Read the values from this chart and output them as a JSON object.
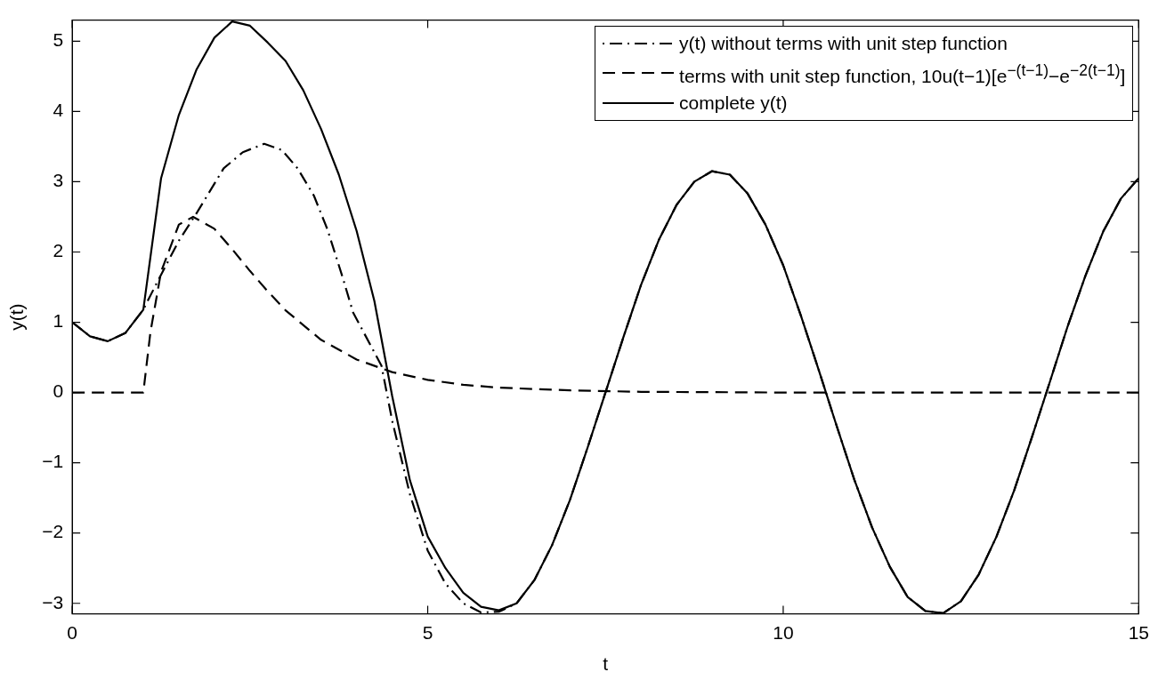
{
  "chart_data": {
    "type": "line",
    "xlabel": "t",
    "ylabel": "y(t)",
    "xlim": [
      0,
      15
    ],
    "xticks": [
      0,
      5,
      10,
      15
    ],
    "ylim": [
      -3.15,
      5.3
    ],
    "yticks": [
      -3,
      -2,
      -1,
      0,
      1,
      2,
      3,
      4,
      5
    ],
    "grid": false,
    "legend": "top right",
    "marker": "none",
    "series": [
      {
        "name": "y(t) without terms with unit step function",
        "color": "#000000",
        "line_style": "dashdot",
        "x": [
          0,
          0.25,
          0.5,
          0.75,
          1,
          1.06,
          1.21,
          1.5,
          1.76,
          2.13,
          2.4,
          2.7,
          2.95,
          3.17,
          3.4,
          3.59,
          3.8,
          3.95,
          4.35,
          4.5,
          4.75,
          5,
          5.25,
          5.5,
          5.75,
          6,
          6.25,
          6.5,
          6.75,
          7,
          7.25,
          7.5,
          7.75,
          8,
          8.25,
          8.5,
          8.75,
          9,
          9.25,
          9.5,
          9.75,
          10,
          10.25,
          10.5,
          10.75,
          11,
          11.25,
          11.5,
          11.75,
          12,
          12.25,
          12.5,
          12.75,
          13,
          13.25,
          13.5,
          13.75,
          14,
          14.25,
          14.5,
          14.75,
          15
        ],
        "values": [
          1,
          0.8,
          0.73,
          0.85,
          1.18,
          1.3,
          1.6,
          2.16,
          2.57,
          3.19,
          3.42,
          3.54,
          3.45,
          3.19,
          2.8,
          2.32,
          1.65,
          1.14,
          0.38,
          -0.4,
          -1.45,
          -2.25,
          -2.72,
          -3.0,
          -3.13,
          -3.12,
          -3.0,
          -2.67,
          -2.17,
          -1.53,
          -0.78,
          0,
          0.78,
          1.53,
          2.17,
          2.67,
          3.0,
          3.15,
          3.1,
          2.83,
          2.39,
          1.81,
          1.09,
          0.32,
          -0.47,
          -1.24,
          -1.92,
          -2.48,
          -2.91,
          -3.11,
          -3.14,
          -2.97,
          -2.59,
          -2.05,
          -1.39,
          -0.63,
          0.15,
          0.94,
          1.66,
          2.29,
          2.76,
          3.05
        ]
      },
      {
        "name": "terms with unit step function, 10u(t−1)[e$^{−(t−1)}$−e$^{−2(t−1)}$]",
        "color": "#000000",
        "line_style": "dashed",
        "x": [
          0,
          1,
          1.1,
          1.25,
          1.5,
          1.7,
          2,
          2.25,
          2.5,
          2.75,
          3,
          3.5,
          4,
          4.5,
          5,
          5.5,
          6,
          7,
          8,
          10,
          12,
          15
        ],
        "values": [
          0,
          0,
          0.86,
          1.72,
          2.39,
          2.5,
          2.33,
          2.04,
          1.73,
          1.44,
          1.17,
          0.75,
          0.47,
          0.29,
          0.18,
          0.11,
          0.07,
          0.03,
          0.01,
          0,
          0,
          0
        ]
      },
      {
        "name": "complete y(t)",
        "color": "#000000",
        "line_style": "solid",
        "x": [
          0,
          0.25,
          0.5,
          0.75,
          1,
          1.25,
          1.5,
          1.75,
          2,
          2.25,
          2.5,
          2.75,
          3,
          3.25,
          3.5,
          3.75,
          4,
          4.25,
          4.5,
          4.75,
          5,
          5.25,
          5.5,
          5.75,
          6,
          6.25,
          6.5,
          6.75,
          7,
          7.25,
          7.5,
          7.75,
          8,
          8.25,
          8.5,
          8.75,
          9,
          9.25,
          9.5,
          9.75,
          10,
          10.25,
          10.5,
          10.75,
          11,
          11.25,
          11.5,
          11.75,
          12,
          12.25,
          12.5,
          12.75,
          13,
          13.25,
          13.5,
          13.75,
          14,
          14.25,
          14.5,
          14.75,
          15
        ],
        "values": [
          1,
          0.8,
          0.73,
          0.85,
          1.18,
          3.05,
          3.95,
          4.6,
          5.05,
          5.28,
          5.22,
          4.98,
          4.72,
          4.3,
          3.75,
          3.1,
          2.3,
          1.3,
          -0.05,
          -1.25,
          -2.05,
          -2.5,
          -2.85,
          -3.05,
          -3.1,
          -3.0,
          -2.67,
          -2.17,
          -1.53,
          -0.78,
          0,
          0.78,
          1.53,
          2.17,
          2.67,
          3.0,
          3.15,
          3.1,
          2.83,
          2.39,
          1.81,
          1.09,
          0.32,
          -0.47,
          -1.24,
          -1.92,
          -2.48,
          -2.91,
          -3.11,
          -3.14,
          -2.97,
          -2.59,
          -2.05,
          -1.39,
          -0.63,
          0.15,
          0.94,
          1.66,
          2.29,
          2.76,
          3.05
        ]
      }
    ]
  }
}
